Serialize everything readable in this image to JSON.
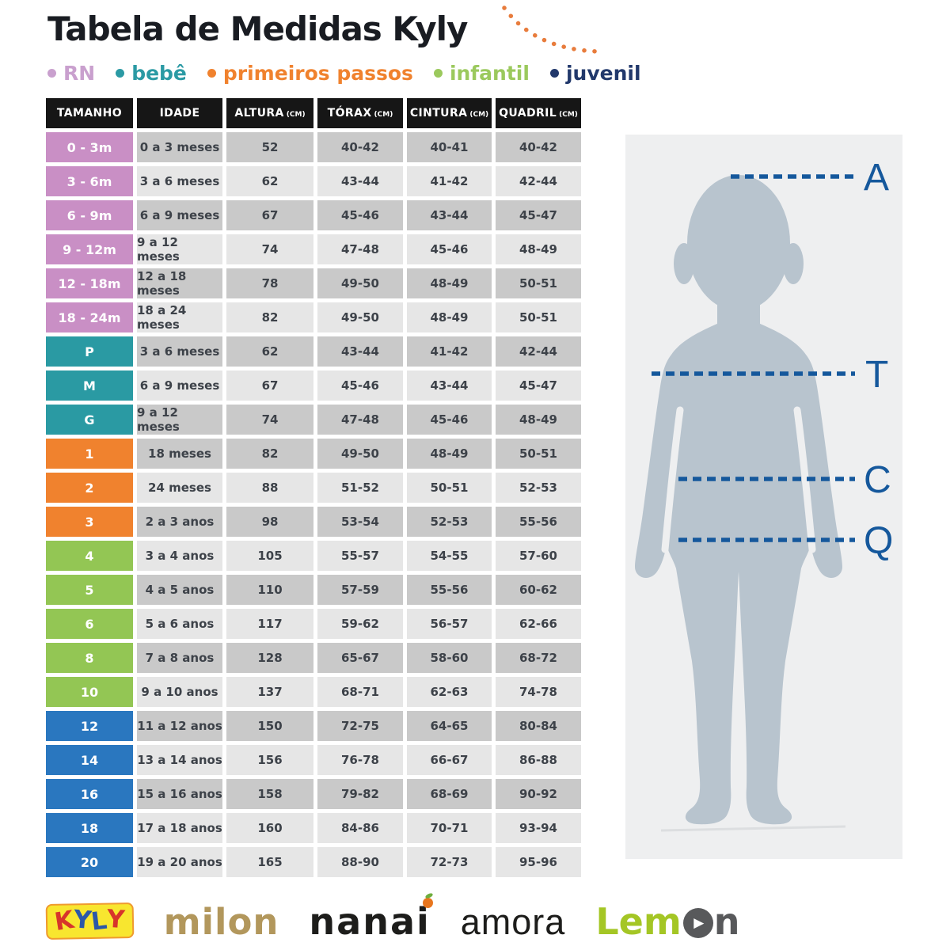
{
  "title": "Tabela de Medidas Kyly",
  "legend": [
    {
      "key": "rn",
      "label": "RN",
      "color": "#c9a0ce"
    },
    {
      "key": "bebe",
      "label": "bebê",
      "color": "#2b9aa4"
    },
    {
      "key": "passos",
      "label": "primeiros passos",
      "color": "#f0822e"
    },
    {
      "key": "infantil",
      "label": "infantil",
      "color": "#9bc95d"
    },
    {
      "key": "juvenil",
      "label": "juvenil",
      "color": "#21386b"
    }
  ],
  "chart_data": {
    "type": "table",
    "title": "Tabela de Medidas Kyly",
    "columns": [
      {
        "label": "TAMANHO",
        "unit": ""
      },
      {
        "label": "IDADE",
        "unit": ""
      },
      {
        "label": "ALTURA",
        "unit": "(CM)"
      },
      {
        "label": "TÓRAX",
        "unit": "(CM)"
      },
      {
        "label": "CINTURA",
        "unit": "(CM)"
      },
      {
        "label": "QUADRIL",
        "unit": "(CM)"
      }
    ],
    "rows": [
      {
        "tamanho": "0 - 3m",
        "idade": "0 a 3 meses",
        "altura": "52",
        "torax": "40-42",
        "cintura": "40-41",
        "quadril": "40-42",
        "group": "rn",
        "shade": "dark"
      },
      {
        "tamanho": "3 - 6m",
        "idade": "3 a 6 meses",
        "altura": "62",
        "torax": "43-44",
        "cintura": "41-42",
        "quadril": "42-44",
        "group": "rn",
        "shade": "light"
      },
      {
        "tamanho": "6 - 9m",
        "idade": "6 a 9 meses",
        "altura": "67",
        "torax": "45-46",
        "cintura": "43-44",
        "quadril": "45-47",
        "group": "rn",
        "shade": "dark"
      },
      {
        "tamanho": "9 - 12m",
        "idade": "9 a 12 meses",
        "altura": "74",
        "torax": "47-48",
        "cintura": "45-46",
        "quadril": "48-49",
        "group": "rn",
        "shade": "light"
      },
      {
        "tamanho": "12 - 18m",
        "idade": "12 a 18 meses",
        "altura": "78",
        "torax": "49-50",
        "cintura": "48-49",
        "quadril": "50-51",
        "group": "rn",
        "shade": "dark"
      },
      {
        "tamanho": "18 - 24m",
        "idade": "18 a 24 meses",
        "altura": "82",
        "torax": "49-50",
        "cintura": "48-49",
        "quadril": "50-51",
        "group": "rn",
        "shade": "light"
      },
      {
        "tamanho": "P",
        "idade": "3 a 6 meses",
        "altura": "62",
        "torax": "43-44",
        "cintura": "41-42",
        "quadril": "42-44",
        "group": "bebe",
        "shade": "dark"
      },
      {
        "tamanho": "M",
        "idade": "6 a 9 meses",
        "altura": "67",
        "torax": "45-46",
        "cintura": "43-44",
        "quadril": "45-47",
        "group": "bebe",
        "shade": "light"
      },
      {
        "tamanho": "G",
        "idade": "9 a 12 meses",
        "altura": "74",
        "torax": "47-48",
        "cintura": "45-46",
        "quadril": "48-49",
        "group": "bebe",
        "shade": "dark"
      },
      {
        "tamanho": "1",
        "idade": "18 meses",
        "altura": "82",
        "torax": "49-50",
        "cintura": "48-49",
        "quadril": "50-51",
        "group": "passos",
        "shade": "dark"
      },
      {
        "tamanho": "2",
        "idade": "24 meses",
        "altura": "88",
        "torax": "51-52",
        "cintura": "50-51",
        "quadril": "52-53",
        "group": "passos",
        "shade": "light"
      },
      {
        "tamanho": "3",
        "idade": "2 a 3 anos",
        "altura": "98",
        "torax": "53-54",
        "cintura": "52-53",
        "quadril": "55-56",
        "group": "passos",
        "shade": "dark"
      },
      {
        "tamanho": "4",
        "idade": "3 a 4 anos",
        "altura": "105",
        "torax": "55-57",
        "cintura": "54-55",
        "quadril": "57-60",
        "group": "infantil",
        "shade": "light"
      },
      {
        "tamanho": "5",
        "idade": "4 a 5 anos",
        "altura": "110",
        "torax": "57-59",
        "cintura": "55-56",
        "quadril": "60-62",
        "group": "infantil",
        "shade": "dark"
      },
      {
        "tamanho": "6",
        "idade": "5 a 6 anos",
        "altura": "117",
        "torax": "59-62",
        "cintura": "56-57",
        "quadril": "62-66",
        "group": "infantil",
        "shade": "light"
      },
      {
        "tamanho": "8",
        "idade": "7 a 8 anos",
        "altura": "128",
        "torax": "65-67",
        "cintura": "58-60",
        "quadril": "68-72",
        "group": "infantil",
        "shade": "dark"
      },
      {
        "tamanho": "10",
        "idade": "9 a 10 anos",
        "altura": "137",
        "torax": "68-71",
        "cintura": "62-63",
        "quadril": "74-78",
        "group": "infantil",
        "shade": "light"
      },
      {
        "tamanho": "12",
        "idade": "11 a 12 anos",
        "altura": "150",
        "torax": "72-75",
        "cintura": "64-65",
        "quadril": "80-84",
        "group": "juvenil",
        "shade": "dark"
      },
      {
        "tamanho": "14",
        "idade": "13 a 14 anos",
        "altura": "156",
        "torax": "76-78",
        "cintura": "66-67",
        "quadril": "86-88",
        "group": "juvenil",
        "shade": "light"
      },
      {
        "tamanho": "16",
        "idade": "15 a 16 anos",
        "altura": "158",
        "torax": "79-82",
        "cintura": "68-69",
        "quadril": "90-92",
        "group": "juvenil",
        "shade": "dark"
      },
      {
        "tamanho": "18",
        "idade": "17 a 18 anos",
        "altura": "160",
        "torax": "84-86",
        "cintura": "70-71",
        "quadril": "93-94",
        "group": "juvenil",
        "shade": "light"
      },
      {
        "tamanho": "20",
        "idade": "19 a 20 anos",
        "altura": "165",
        "torax": "88-90",
        "cintura": "72-73",
        "quadril": "95-96",
        "group": "juvenil",
        "shade": "light"
      }
    ]
  },
  "group_colors": {
    "rn": "#c98fc5",
    "bebe": "#2a9aa3",
    "passos": "#f0822e",
    "infantil": "#93c654",
    "juvenil": "#2a77bf"
  },
  "diagram": {
    "labels": [
      "A",
      "T",
      "C",
      "Q"
    ]
  },
  "footer": {
    "kyly_letters": [
      "K",
      "Y",
      "L",
      "Y"
    ],
    "milon": "milon",
    "nanai": "nanai",
    "amora": "amora",
    "lemon": {
      "pre": "Lem",
      "arrow": "▶",
      "post": "n"
    }
  },
  "colors": {
    "title_text": "#191c22",
    "header_bg": "#161616",
    "header_text": "#ffffff",
    "cell_dark": "#c9c9c9",
    "cell_light": "#e6e6e6",
    "cell_text": "#3d4249",
    "diagram_line": "#15589c",
    "silhouette": "#b8c4ce",
    "panel_bg": "#eeeff0",
    "dotted_arc": "#e87c3c",
    "kyly_red": "#d7342b",
    "kyly_blue": "#2b57a8",
    "kyly_yellow": "#f8e62f",
    "milon_gold": "#b2975c",
    "lemon_green": "#a4c625",
    "lemon_gray": "#58595b"
  }
}
